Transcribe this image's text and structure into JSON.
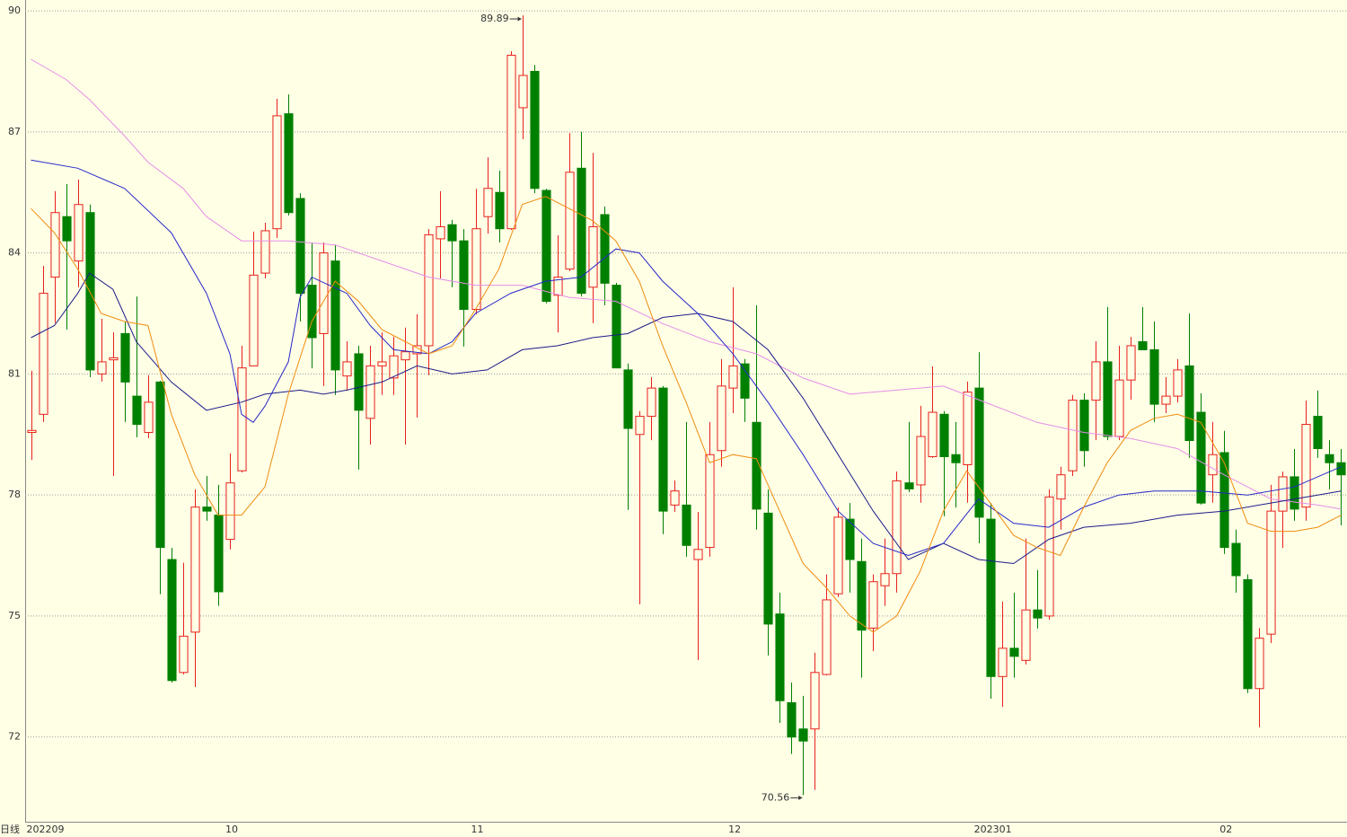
{
  "chart_data": {
    "type": "candlestick",
    "period_label": "日线",
    "categories": [
      "202209",
      null,
      null,
      null,
      null,
      null,
      null,
      null,
      null,
      null,
      null,
      null,
      null,
      null,
      null,
      null,
      null,
      "10",
      null,
      null,
      null,
      null,
      null,
      null,
      null,
      null,
      null,
      null,
      null,
      null,
      null,
      null,
      null,
      null,
      null,
      null,
      null,
      null,
      "11",
      null,
      null,
      null,
      null,
      null,
      null,
      null,
      null,
      null,
      null,
      null,
      null,
      null,
      null,
      null,
      null,
      null,
      null,
      null,
      null,
      null,
      "12",
      null,
      null,
      null,
      null,
      null,
      null,
      null,
      null,
      null,
      null,
      null,
      null,
      null,
      null,
      null,
      null,
      null,
      null,
      null,
      null,
      "202301",
      null,
      null,
      null,
      null,
      null,
      null,
      null,
      null,
      null,
      null,
      null,
      null,
      null,
      null,
      null,
      null,
      null,
      null,
      null,
      null,
      "02",
      null,
      null,
      null,
      null,
      null,
      null,
      null,
      null,
      null,
      null
    ],
    "open": [
      79.55,
      80.0,
      83.4,
      84.9,
      83.8,
      85.0,
      81.0,
      81.35,
      82.0,
      80.45,
      79.55,
      80.8,
      76.4,
      73.6,
      74.6,
      77.7,
      77.5,
      76.9,
      78.6,
      81.2,
      83.5,
      84.6,
      87.45,
      85.35,
      83.2,
      82.0,
      83.8,
      80.95,
      81.5,
      79.9,
      81.2,
      80.9,
      81.35,
      81.5,
      81.7,
      84.35,
      84.7,
      84.3,
      82.6,
      84.9,
      85.5,
      84.6,
      87.6,
      88.5,
      85.55,
      82.95,
      83.6,
      86.1,
      83.15,
      84.95,
      83.2,
      81.1,
      79.5,
      79.95,
      80.65,
      77.75,
      77.75,
      76.4,
      76.7,
      79.1,
      80.65,
      81.25,
      79.8,
      77.55,
      75.05,
      72.85,
      72.2,
      72.2,
      73.55,
      75.55,
      77.4,
      76.35,
      74.7,
      75.75,
      76.05,
      78.3,
      78.25,
      78.95,
      80.0,
      79.0,
      78.75,
      80.65,
      77.4,
      73.5,
      74.2,
      73.9,
      75.15,
      75.0,
      77.9,
      78.6,
      80.35,
      80.35,
      81.3,
      79.45,
      80.85,
      81.8,
      81.6,
      80.25,
      80.45,
      81.2,
      80.05,
      78.5,
      79.05,
      76.8,
      75.9,
      73.2,
      74.55,
      77.6,
      78.45,
      77.7,
      79.95,
      79.0,
      78.8
    ],
    "high": [
      81.08,
      83.68,
      85.53,
      85.71,
      85.82,
      85.2,
      82.37,
      82.03,
      82.3,
      82.92,
      80.97,
      80.83,
      76.69,
      76.32,
      78.14,
      78.47,
      78.25,
      79.03,
      81.7,
      84.53,
      84.75,
      87.82,
      87.93,
      85.48,
      84.26,
      84.26,
      84.2,
      81.81,
      81.7,
      81.7,
      82.03,
      81.92,
      82.15,
      82.48,
      84.59,
      85.53,
      84.82,
      84.59,
      85.59,
      86.37,
      86.04,
      89.0,
      89.89,
      88.66,
      85.59,
      84.44,
      86.97,
      87.0,
      86.48,
      85.15,
      83.26,
      81.26,
      80.08,
      80.92,
      80.7,
      78.36,
      79.81,
      77.58,
      79.81,
      81.37,
      83.15,
      81.37,
      82.7,
      78.14,
      75.58,
      73.35,
      73.02,
      74.09,
      76.03,
      77.69,
      77.8,
      76.92,
      76.03,
      76.92,
      78.58,
      79.81,
      80.21,
      81.19,
      80.08,
      79.81,
      80.81,
      81.54,
      77.8,
      75.36,
      75.58,
      76.92,
      76.14,
      78.14,
      78.7,
      80.48,
      80.52,
      81.81,
      82.66,
      81.7,
      81.92,
      82.66,
      82.3,
      80.92,
      81.37,
      82.5,
      80.52,
      79.81,
      79.59,
      77.14,
      76.03,
      74.7,
      78.25,
      78.58,
      79.14,
      80.34,
      80.59,
      79.36,
      79.14
    ],
    "low": [
      78.87,
      79.81,
      82.26,
      82.1,
      83.15,
      80.92,
      80.81,
      78.47,
      79.81,
      79.43,
      79.41,
      75.54,
      73.35,
      73.55,
      73.24,
      77.36,
      75.25,
      76.65,
      78.56,
      81.19,
      83.37,
      84.37,
      84.93,
      82.3,
      81.14,
      80.7,
      80.48,
      80.59,
      78.63,
      79.25,
      80.48,
      80.48,
      79.25,
      79.92,
      80.97,
      83.37,
      83.15,
      81.68,
      82.48,
      84.48,
      84.26,
      84.57,
      86.82,
      85.48,
      82.75,
      82.03,
      83.55,
      82.92,
      82.26,
      82.7,
      81.14,
      77.63,
      75.29,
      79.36,
      77.03,
      77.58,
      76.47,
      73.91,
      76.47,
      78.7,
      80.03,
      79.81,
      77.14,
      74.02,
      72.35,
      71.58,
      70.56,
      70.69,
      73.53,
      75.47,
      75.58,
      73.47,
      74.13,
      75.25,
      75.58,
      78.07,
      77.81,
      78.92,
      77.47,
      77.69,
      77.81,
      76.8,
      72.95,
      72.75,
      73.47,
      73.8,
      74.69,
      74.91,
      77.14,
      78.47,
      78.7,
      79.36,
      79.36,
      79.36,
      80.36,
      81.59,
      79.81,
      80.03,
      80.3,
      78.92,
      77.76,
      77.81,
      76.54,
      75.58,
      73.09,
      72.24,
      74.33,
      76.69,
      77.36,
      77.36,
      78.92,
      78.14,
      77.25
    ],
    "close": [
      79.6,
      83.0,
      85.0,
      84.3,
      85.2,
      81.1,
      81.3,
      81.4,
      80.8,
      79.75,
      80.3,
      76.7,
      73.4,
      74.5,
      77.7,
      77.6,
      75.6,
      78.3,
      81.15,
      83.45,
      84.55,
      87.4,
      85.0,
      83.0,
      81.9,
      84.0,
      81.1,
      81.3,
      80.1,
      81.2,
      81.3,
      81.45,
      81.55,
      81.7,
      84.45,
      84.65,
      84.3,
      82.6,
      84.6,
      85.6,
      84.6,
      88.9,
      88.4,
      85.6,
      82.8,
      83.4,
      86.0,
      83.0,
      84.65,
      83.25,
      81.15,
      79.65,
      79.95,
      80.65,
      77.6,
      78.1,
      76.75,
      76.65,
      79.0,
      80.7,
      81.2,
      80.4,
      77.65,
      74.8,
      72.9,
      72.0,
      71.9,
      73.6,
      75.4,
      77.45,
      76.4,
      74.65,
      75.85,
      76.05,
      78.35,
      78.15,
      79.45,
      80.05,
      78.95,
      78.8,
      80.55,
      77.45,
      73.5,
      74.2,
      74.0,
      75.15,
      74.95,
      77.95,
      78.5,
      80.35,
      79.1,
      81.3,
      79.45,
      80.85,
      81.7,
      81.6,
      80.25,
      80.45,
      81.1,
      79.35,
      77.8,
      79.0,
      76.7,
      76.0,
      73.2,
      74.45,
      77.6,
      78.45,
      77.65,
      79.75,
      79.15,
      78.8,
      78.5
    ],
    "up_color": "#e8201c",
    "down_color": "#008000",
    "lines": [
      {
        "color": "#e58ee8",
        "x": [
          0,
          3,
          5,
          8,
          10,
          13,
          15,
          18,
          22,
          26,
          30,
          34,
          38,
          42,
          46,
          50,
          54,
          58,
          62,
          66,
          70,
          74,
          78,
          82,
          86,
          90,
          94,
          98,
          102,
          106,
          110,
          112
        ],
        "values": [
          88.8,
          88.3,
          87.8,
          86.9,
          86.25,
          85.6,
          84.9,
          84.3,
          84.3,
          84.2,
          83.8,
          83.4,
          83.2,
          83.2,
          82.9,
          82.8,
          82.25,
          81.8,
          81.5,
          80.9,
          80.5,
          80.6,
          80.7,
          80.25,
          79.8,
          79.55,
          79.4,
          79.15,
          78.5,
          77.9,
          77.75,
          77.65
        ]
      },
      {
        "color": "#1c1c8a",
        "x": [
          0,
          2,
          4,
          5,
          7,
          9,
          12,
          15,
          18,
          20,
          23,
          25,
          27,
          30,
          33,
          36,
          39,
          42,
          45,
          48,
          51,
          54,
          57,
          60,
          63,
          66,
          69,
          72,
          75,
          78,
          81,
          84,
          87,
          90,
          94,
          98,
          102,
          106,
          110,
          112
        ],
        "values": [
          81.9,
          82.2,
          83.0,
          83.5,
          83.1,
          81.8,
          80.8,
          80.1,
          80.3,
          80.5,
          80.6,
          80.5,
          80.6,
          80.8,
          81.2,
          81.0,
          81.1,
          81.6,
          81.7,
          81.9,
          82.0,
          82.4,
          82.5,
          82.3,
          81.6,
          80.4,
          79.0,
          77.6,
          76.4,
          76.8,
          76.4,
          76.3,
          76.9,
          77.2,
          77.3,
          77.5,
          77.6,
          77.8,
          78.0,
          78.1
        ]
      },
      {
        "color": "#2828c8",
        "x": [
          0,
          4,
          8,
          12,
          15,
          17,
          18,
          19,
          20,
          22,
          23,
          24,
          27,
          29,
          31,
          34,
          36,
          38,
          41,
          44,
          47,
          50,
          52,
          54,
          57,
          60,
          63,
          66,
          69,
          72,
          75,
          78,
          81,
          84,
          87,
          90,
          93,
          96,
          100,
          104,
          108,
          112
        ],
        "values": [
          86.3,
          86.1,
          85.6,
          84.5,
          83.0,
          81.5,
          80.0,
          79.8,
          80.2,
          81.3,
          82.9,
          83.4,
          83.0,
          82.2,
          81.6,
          81.5,
          81.8,
          82.5,
          83.0,
          83.3,
          83.4,
          84.1,
          84.0,
          83.3,
          82.5,
          81.5,
          80.3,
          79.0,
          77.6,
          76.8,
          76.5,
          76.8,
          77.9,
          77.3,
          77.2,
          77.7,
          78.0,
          78.1,
          78.1,
          78.0,
          78.2,
          78.7
        ]
      },
      {
        "color": "#f08c10",
        "x": [
          0,
          2,
          4,
          6,
          8,
          10,
          12,
          14,
          16,
          18,
          20,
          22,
          24,
          26,
          28,
          30,
          32,
          34,
          36,
          38,
          40,
          42,
          44,
          46,
          48,
          50,
          52,
          54,
          56,
          58,
          60,
          62,
          64,
          66,
          68,
          70,
          72,
          74,
          76,
          78,
          80,
          82,
          84,
          86,
          88,
          90,
          92,
          94,
          96,
          98,
          100,
          102,
          104,
          106,
          108,
          110,
          112
        ],
        "values": [
          85.1,
          84.5,
          83.6,
          82.5,
          82.3,
          82.2,
          80.0,
          78.5,
          77.5,
          77.5,
          78.2,
          80.5,
          82.3,
          83.3,
          82.8,
          82.1,
          81.8,
          81.5,
          81.7,
          82.6,
          83.6,
          85.2,
          85.4,
          85.1,
          84.8,
          84.3,
          83.3,
          81.7,
          80.3,
          78.8,
          79.0,
          78.9,
          77.6,
          76.3,
          75.7,
          75.0,
          74.6,
          75.0,
          76.1,
          77.6,
          78.6,
          77.8,
          77.0,
          76.7,
          76.5,
          77.7,
          78.8,
          79.6,
          79.9,
          80.0,
          79.8,
          78.8,
          77.3,
          77.1,
          77.1,
          77.2,
          77.5
        ]
      }
    ],
    "annotations": [
      {
        "label": "89.89"
      },
      {
        "label": "70.56"
      }
    ],
    "ylim": [
      69.9,
      90.27
    ],
    "yticks": [
      72,
      75,
      78,
      81,
      84,
      87,
      90
    ],
    "grid": true
  }
}
